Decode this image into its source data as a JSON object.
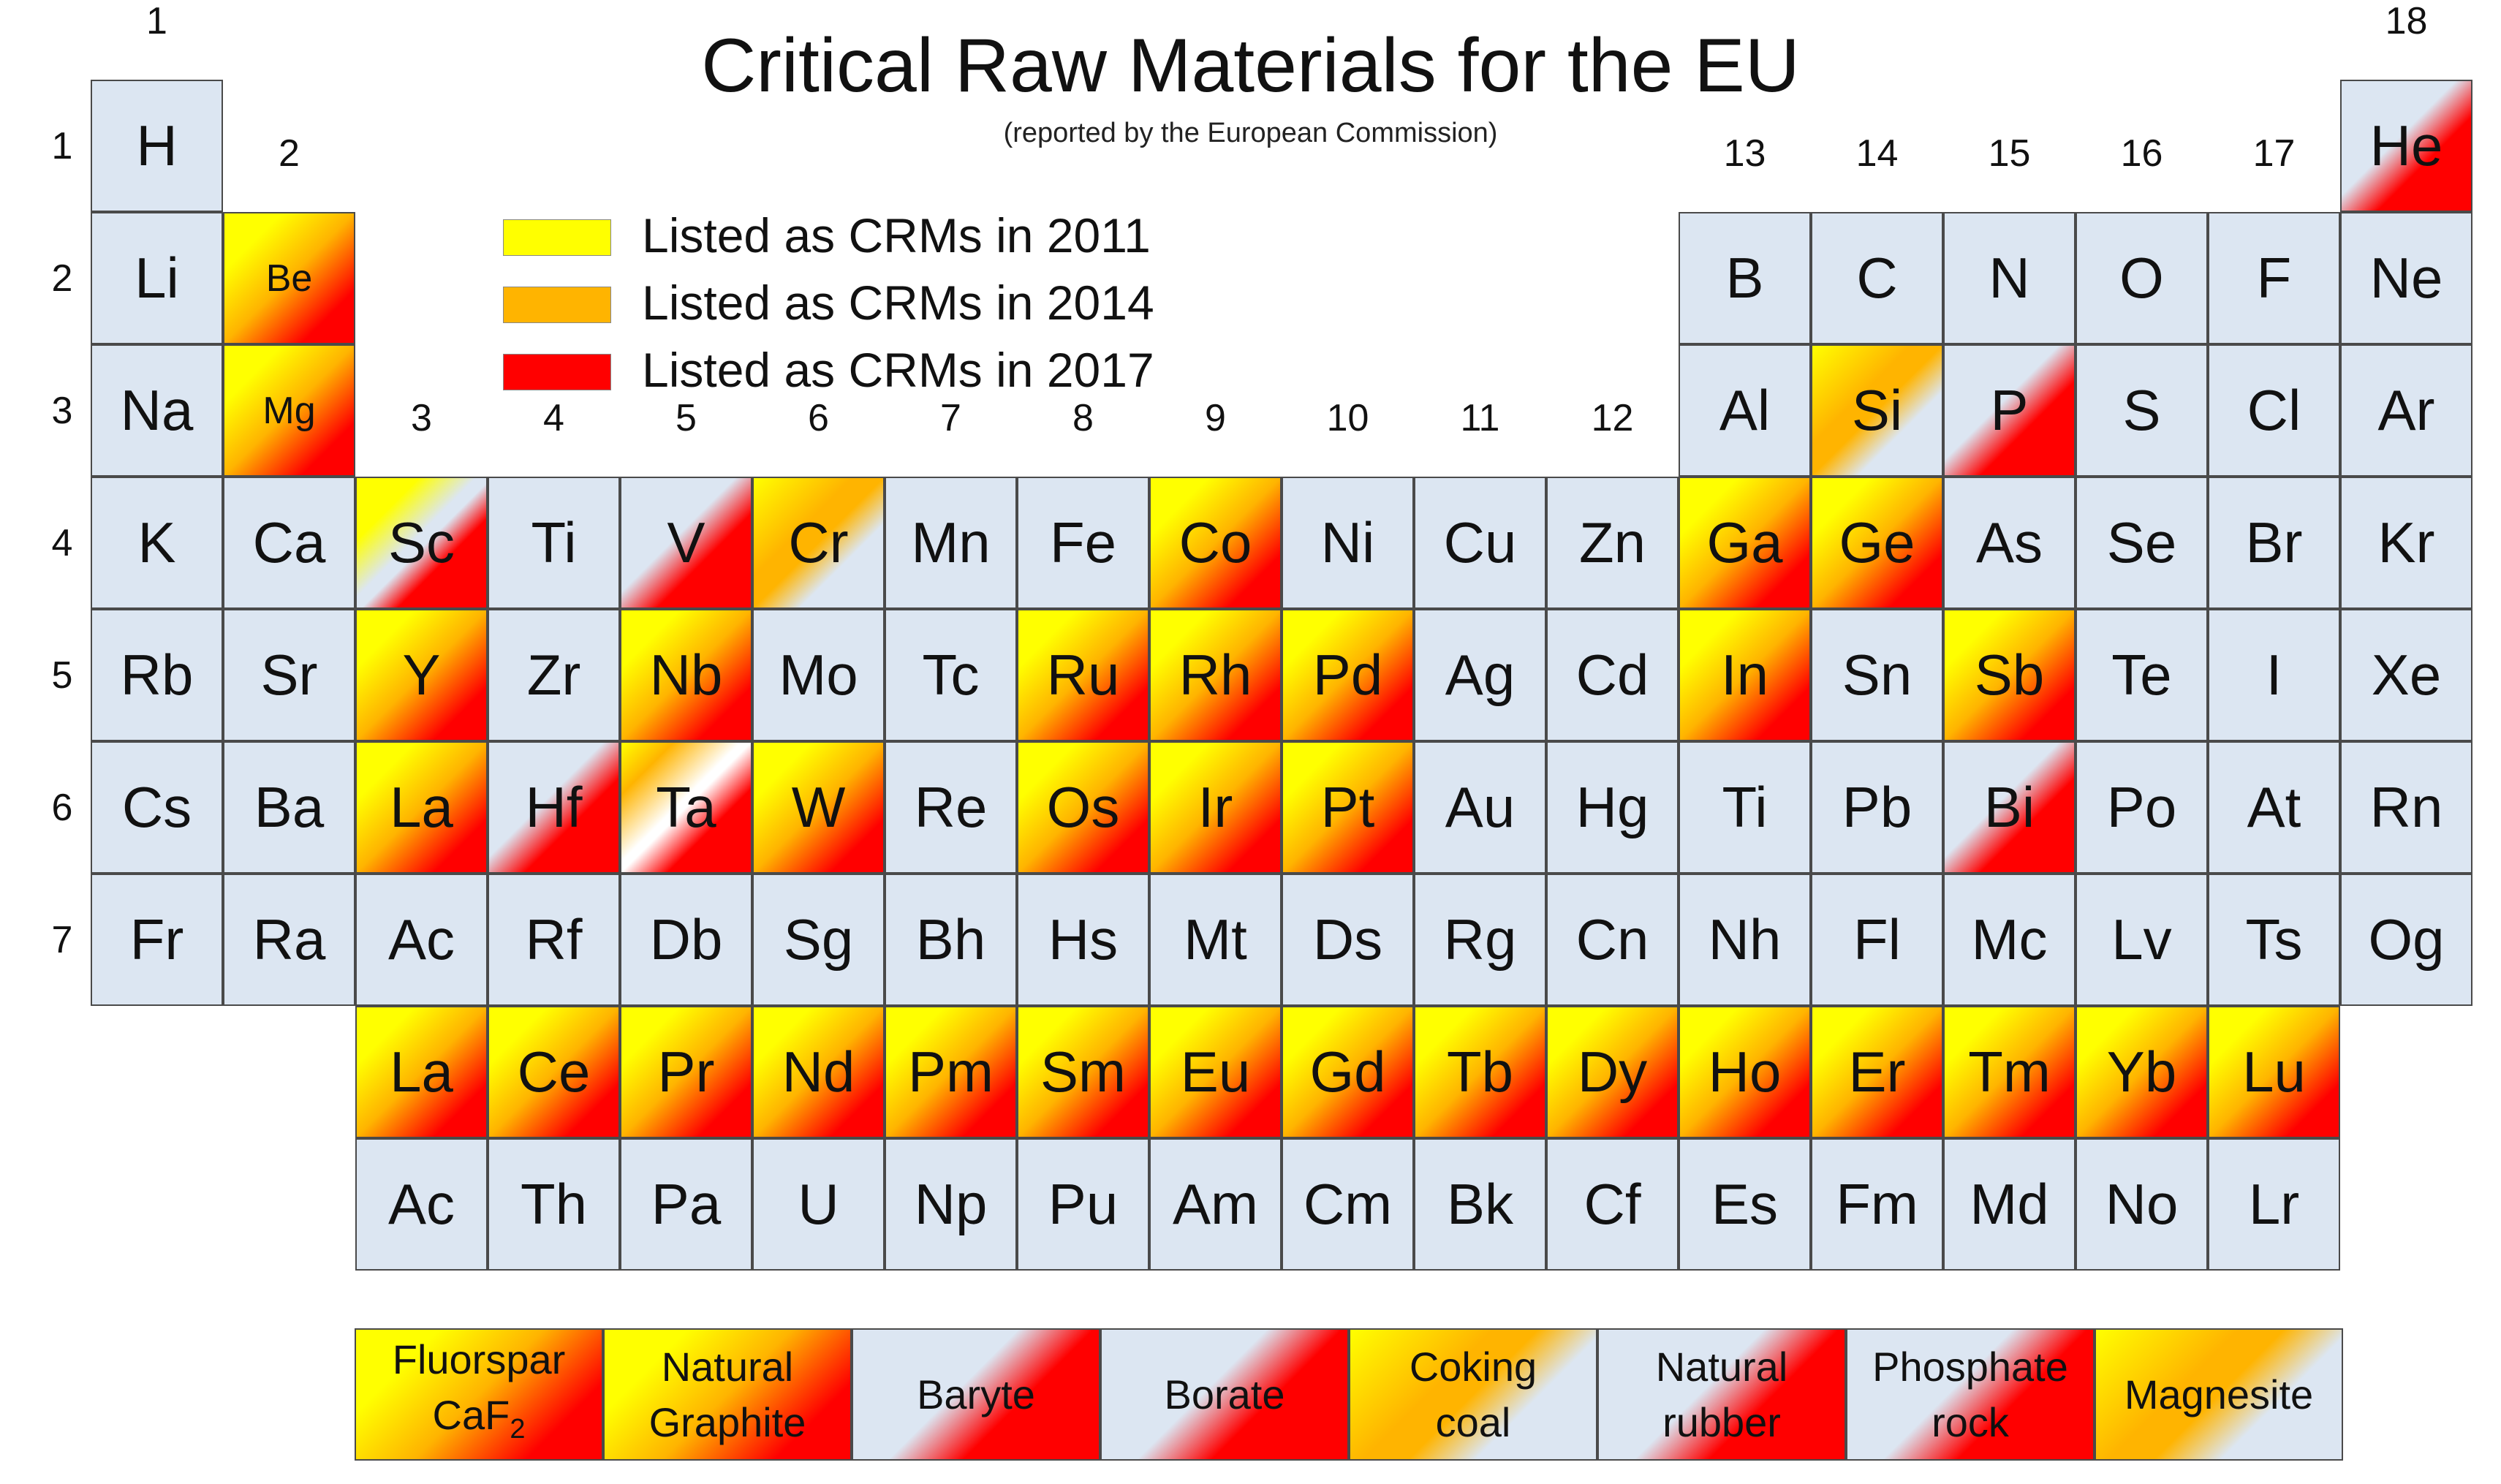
{
  "title": "Critical Raw Materials for the EU",
  "subtitle": "(reported by the European Commission)",
  "colors": {
    "base": "#dce6f2",
    "crm_2011": "#ffff00",
    "crm_2014": "#ffb400",
    "crm_2017": "#ff0000",
    "border": "#4a4a4a"
  },
  "legend": [
    {
      "label": "Listed as CRMs in 2011",
      "color": "#ffff00"
    },
    {
      "label": "Listed as CRMs in 2014",
      "color": "#ffb400"
    },
    {
      "label": "Listed as CRMs in 2017",
      "color": "#ff0000"
    }
  ],
  "group_labels": [
    {
      "text": "1",
      "col": 1,
      "row": 0.5
    },
    {
      "text": "2",
      "col": 2,
      "row": 1.5
    },
    {
      "text": "3",
      "col": 3,
      "row": 3.5
    },
    {
      "text": "4",
      "col": 4,
      "row": 3.5
    },
    {
      "text": "5",
      "col": 5,
      "row": 3.5
    },
    {
      "text": "6",
      "col": 6,
      "row": 3.5
    },
    {
      "text": "7",
      "col": 7,
      "row": 3.5
    },
    {
      "text": "8",
      "col": 8,
      "row": 3.5
    },
    {
      "text": "9",
      "col": 9,
      "row": 3.5
    },
    {
      "text": "10",
      "col": 10,
      "row": 3.5
    },
    {
      "text": "11",
      "col": 11,
      "row": 3.5
    },
    {
      "text": "12",
      "col": 12,
      "row": 3.5
    },
    {
      "text": "13",
      "col": 13,
      "row": 1.5
    },
    {
      "text": "14",
      "col": 14,
      "row": 1.5
    },
    {
      "text": "15",
      "col": 15,
      "row": 1.5
    },
    {
      "text": "16",
      "col": 16,
      "row": 1.5
    },
    {
      "text": "17",
      "col": 17,
      "row": 1.5
    },
    {
      "text": "18",
      "col": 18,
      "row": 0.5
    }
  ],
  "period_labels": [
    "1",
    "2",
    "3",
    "4",
    "5",
    "6",
    "7"
  ],
  "elements": [
    {
      "s": "H",
      "r": 1,
      "c": 1,
      "k": ""
    },
    {
      "s": "He",
      "r": 1,
      "c": 18,
      "k": "d17"
    },
    {
      "s": "Li",
      "r": 2,
      "c": 1,
      "k": ""
    },
    {
      "s": "Be",
      "r": 2,
      "c": 2,
      "k": "y14",
      "small": true
    },
    {
      "s": "B",
      "r": 2,
      "c": 13,
      "k": ""
    },
    {
      "s": "C",
      "r": 2,
      "c": 14,
      "k": ""
    },
    {
      "s": "N",
      "r": 2,
      "c": 15,
      "k": ""
    },
    {
      "s": "O",
      "r": 2,
      "c": 16,
      "k": ""
    },
    {
      "s": "F",
      "r": 2,
      "c": 17,
      "k": ""
    },
    {
      "s": "Ne",
      "r": 2,
      "c": 18,
      "k": ""
    },
    {
      "s": "Na",
      "r": 3,
      "c": 1,
      "k": ""
    },
    {
      "s": "Mg",
      "r": 3,
      "c": 2,
      "k": "y14",
      "small": true
    },
    {
      "s": "Al",
      "r": 3,
      "c": 13,
      "k": ""
    },
    {
      "s": "Si",
      "r": 3,
      "c": 14,
      "k": "d14"
    },
    {
      "s": "P",
      "r": 3,
      "c": 15,
      "k": "d17"
    },
    {
      "s": "S",
      "r": 3,
      "c": 16,
      "k": ""
    },
    {
      "s": "Cl",
      "r": 3,
      "c": 17,
      "k": ""
    },
    {
      "s": "Ar",
      "r": 3,
      "c": 18,
      "k": ""
    },
    {
      "s": "K",
      "r": 4,
      "c": 1,
      "k": ""
    },
    {
      "s": "Ca",
      "r": 4,
      "c": 2,
      "k": ""
    },
    {
      "s": "Sc",
      "r": 4,
      "c": 3,
      "k": "sc"
    },
    {
      "s": "Ti",
      "r": 4,
      "c": 4,
      "k": ""
    },
    {
      "s": "V",
      "r": 4,
      "c": 5,
      "k": "d17"
    },
    {
      "s": "Cr",
      "r": 4,
      "c": 6,
      "k": "d14"
    },
    {
      "s": "Mn",
      "r": 4,
      "c": 7,
      "k": ""
    },
    {
      "s": "Fe",
      "r": 4,
      "c": 8,
      "k": ""
    },
    {
      "s": "Co",
      "r": 4,
      "c": 9,
      "k": "y14"
    },
    {
      "s": "Ni",
      "r": 4,
      "c": 10,
      "k": ""
    },
    {
      "s": "Cu",
      "r": 4,
      "c": 11,
      "k": ""
    },
    {
      "s": "Zn",
      "r": 4,
      "c": 12,
      "k": ""
    },
    {
      "s": "Ga",
      "r": 4,
      "c": 13,
      "k": "y14"
    },
    {
      "s": "Ge",
      "r": 4,
      "c": 14,
      "k": "y14"
    },
    {
      "s": "As",
      "r": 4,
      "c": 15,
      "k": ""
    },
    {
      "s": "Se",
      "r": 4,
      "c": 16,
      "k": ""
    },
    {
      "s": "Br",
      "r": 4,
      "c": 17,
      "k": ""
    },
    {
      "s": "Kr",
      "r": 4,
      "c": 18,
      "k": ""
    },
    {
      "s": "Rb",
      "r": 5,
      "c": 1,
      "k": ""
    },
    {
      "s": "Sr",
      "r": 5,
      "c": 2,
      "k": ""
    },
    {
      "s": "Y",
      "r": 5,
      "c": 3,
      "k": "y14"
    },
    {
      "s": "Zr",
      "r": 5,
      "c": 4,
      "k": ""
    },
    {
      "s": "Nb",
      "r": 5,
      "c": 5,
      "k": "y14"
    },
    {
      "s": "Mo",
      "r": 5,
      "c": 6,
      "k": ""
    },
    {
      "s": "Tc",
      "r": 5,
      "c": 7,
      "k": ""
    },
    {
      "s": "Ru",
      "r": 5,
      "c": 8,
      "k": "y14"
    },
    {
      "s": "Rh",
      "r": 5,
      "c": 9,
      "k": "y14"
    },
    {
      "s": "Pd",
      "r": 5,
      "c": 10,
      "k": "y14"
    },
    {
      "s": "Ag",
      "r": 5,
      "c": 11,
      "k": ""
    },
    {
      "s": "Cd",
      "r": 5,
      "c": 12,
      "k": ""
    },
    {
      "s": "In",
      "r": 5,
      "c": 13,
      "k": "y14"
    },
    {
      "s": "Sn",
      "r": 5,
      "c": 14,
      "k": ""
    },
    {
      "s": "Sb",
      "r": 5,
      "c": 15,
      "k": "y14"
    },
    {
      "s": "Te",
      "r": 5,
      "c": 16,
      "k": ""
    },
    {
      "s": "I",
      "r": 5,
      "c": 17,
      "k": ""
    },
    {
      "s": "Xe",
      "r": 5,
      "c": 18,
      "k": ""
    },
    {
      "s": "Cs",
      "r": 6,
      "c": 1,
      "k": ""
    },
    {
      "s": "Ba",
      "r": 6,
      "c": 2,
      "k": ""
    },
    {
      "s": "La",
      "r": 6,
      "c": 3,
      "k": "y14"
    },
    {
      "s": "Hf",
      "r": 6,
      "c": 4,
      "k": "d17"
    },
    {
      "s": "Ta",
      "r": 6,
      "c": 5,
      "k": "ta"
    },
    {
      "s": "W",
      "r": 6,
      "c": 6,
      "k": "y14"
    },
    {
      "s": "Re",
      "r": 6,
      "c": 7,
      "k": ""
    },
    {
      "s": "Os",
      "r": 6,
      "c": 8,
      "k": "y14"
    },
    {
      "s": "Ir",
      "r": 6,
      "c": 9,
      "k": "y14"
    },
    {
      "s": "Pt",
      "r": 6,
      "c": 10,
      "k": "y14"
    },
    {
      "s": "Au",
      "r": 6,
      "c": 11,
      "k": ""
    },
    {
      "s": "Hg",
      "r": 6,
      "c": 12,
      "k": ""
    },
    {
      "s": "Ti",
      "r": 6,
      "c": 13,
      "k": ""
    },
    {
      "s": "Pb",
      "r": 6,
      "c": 14,
      "k": ""
    },
    {
      "s": "Bi",
      "r": 6,
      "c": 15,
      "k": "d17"
    },
    {
      "s": "Po",
      "r": 6,
      "c": 16,
      "k": ""
    },
    {
      "s": "At",
      "r": 6,
      "c": 17,
      "k": ""
    },
    {
      "s": "Rn",
      "r": 6,
      "c": 18,
      "k": ""
    },
    {
      "s": "Fr",
      "r": 7,
      "c": 1,
      "k": ""
    },
    {
      "s": "Ra",
      "r": 7,
      "c": 2,
      "k": ""
    },
    {
      "s": "Ac",
      "r": 7,
      "c": 3,
      "k": ""
    },
    {
      "s": "Rf",
      "r": 7,
      "c": 4,
      "k": ""
    },
    {
      "s": "Db",
      "r": 7,
      "c": 5,
      "k": ""
    },
    {
      "s": "Sg",
      "r": 7,
      "c": 6,
      "k": ""
    },
    {
      "s": "Bh",
      "r": 7,
      "c": 7,
      "k": ""
    },
    {
      "s": "Hs",
      "r": 7,
      "c": 8,
      "k": ""
    },
    {
      "s": "Mt",
      "r": 7,
      "c": 9,
      "k": ""
    },
    {
      "s": "Ds",
      "r": 7,
      "c": 10,
      "k": ""
    },
    {
      "s": "Rg",
      "r": 7,
      "c": 11,
      "k": ""
    },
    {
      "s": "Cn",
      "r": 7,
      "c": 12,
      "k": ""
    },
    {
      "s": "Nh",
      "r": 7,
      "c": 13,
      "k": ""
    },
    {
      "s": "Fl",
      "r": 7,
      "c": 14,
      "k": ""
    },
    {
      "s": "Mc",
      "r": 7,
      "c": 15,
      "k": ""
    },
    {
      "s": "Lv",
      "r": 7,
      "c": 16,
      "k": ""
    },
    {
      "s": "Ts",
      "r": 7,
      "c": 17,
      "k": ""
    },
    {
      "s": "Og",
      "r": 7,
      "c": 18,
      "k": ""
    },
    {
      "s": "La",
      "r": 8,
      "c": 3,
      "k": "y14"
    },
    {
      "s": "Ce",
      "r": 8,
      "c": 4,
      "k": "y14"
    },
    {
      "s": "Pr",
      "r": 8,
      "c": 5,
      "k": "y14"
    },
    {
      "s": "Nd",
      "r": 8,
      "c": 6,
      "k": "y14"
    },
    {
      "s": "Pm",
      "r": 8,
      "c": 7,
      "k": "y14"
    },
    {
      "s": "Sm",
      "r": 8,
      "c": 8,
      "k": "y14"
    },
    {
      "s": "Eu",
      "r": 8,
      "c": 9,
      "k": "y14"
    },
    {
      "s": "Gd",
      "r": 8,
      "c": 10,
      "k": "y14"
    },
    {
      "s": "Tb",
      "r": 8,
      "c": 11,
      "k": "y14"
    },
    {
      "s": "Dy",
      "r": 8,
      "c": 12,
      "k": "y14"
    },
    {
      "s": "Ho",
      "r": 8,
      "c": 13,
      "k": "y14"
    },
    {
      "s": "Er",
      "r": 8,
      "c": 14,
      "k": "y14"
    },
    {
      "s": "Tm",
      "r": 8,
      "c": 15,
      "k": "y14"
    },
    {
      "s": "Yb",
      "r": 8,
      "c": 16,
      "k": "y14"
    },
    {
      "s": "Lu",
      "r": 8,
      "c": 17,
      "k": "y14"
    },
    {
      "s": "Ac",
      "r": 9,
      "c": 3,
      "k": ""
    },
    {
      "s": "Th",
      "r": 9,
      "c": 4,
      "k": ""
    },
    {
      "s": "Pa",
      "r": 9,
      "c": 5,
      "k": ""
    },
    {
      "s": "U",
      "r": 9,
      "c": 6,
      "k": ""
    },
    {
      "s": "Np",
      "r": 9,
      "c": 7,
      "k": ""
    },
    {
      "s": "Pu",
      "r": 9,
      "c": 8,
      "k": ""
    },
    {
      "s": "Am",
      "r": 9,
      "c": 9,
      "k": ""
    },
    {
      "s": "Cm",
      "r": 9,
      "c": 10,
      "k": ""
    },
    {
      "s": "Bk",
      "r": 9,
      "c": 11,
      "k": ""
    },
    {
      "s": "Cf",
      "r": 9,
      "c": 12,
      "k": ""
    },
    {
      "s": "Es",
      "r": 9,
      "c": 13,
      "k": ""
    },
    {
      "s": "Fm",
      "r": 9,
      "c": 14,
      "k": ""
    },
    {
      "s": "Md",
      "r": 9,
      "c": 15,
      "k": ""
    },
    {
      "s": "No",
      "r": 9,
      "c": 16,
      "k": ""
    },
    {
      "s": "Lr",
      "r": 9,
      "c": 17,
      "k": ""
    }
  ],
  "extra_materials": [
    {
      "lines": [
        "Fluorspar",
        "CaF"
      ],
      "sub": "2",
      "k": "y14"
    },
    {
      "lines": [
        "Natural",
        "Graphite"
      ],
      "k": "y14"
    },
    {
      "lines": [
        "Baryte"
      ],
      "k": "d17"
    },
    {
      "lines": [
        "Borate"
      ],
      "k": "d17"
    },
    {
      "lines": [
        "Coking",
        "coal"
      ],
      "k": "d14"
    },
    {
      "lines": [
        "Natural",
        "rubber"
      ],
      "k": "d17"
    },
    {
      "lines": [
        "Phosphate",
        "rock"
      ],
      "k": "d17"
    },
    {
      "lines": [
        "Magnesite"
      ],
      "k": "d14"
    }
  ]
}
